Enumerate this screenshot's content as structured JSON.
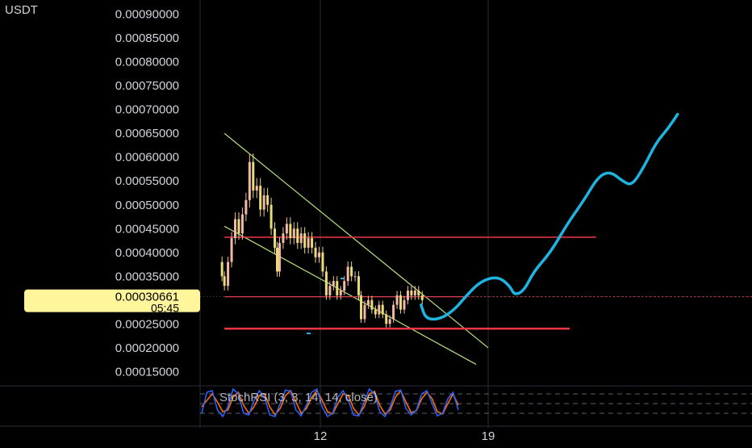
{
  "colors": {
    "background": "#000000",
    "axis_text": "#d1d4dc",
    "grid": "#2a2e39",
    "candle_up": "#f4b9a6",
    "candle_down": "#e8dc7a",
    "channel": "#b7e07a",
    "resistance": "#f23645",
    "projection": "#1fb3e0",
    "price_label_bg": "#fff59a",
    "price_label_text": "#000000",
    "stoch_k": "#2962ff",
    "stoch_d": "#ff6d00"
  },
  "chart_data": {
    "type": "candlestick",
    "currency_label": "USDT",
    "y_ticks": [
      "0.00090000",
      "0.00085000",
      "0.00080000",
      "0.00075000",
      "0.00070000",
      "0.00065000",
      "0.00060000",
      "0.00055000",
      "0.00050000",
      "0.00045000",
      "0.00040000",
      "0.00035000",
      "0.00025000",
      "0.00020000",
      "0.00015000"
    ],
    "ylim": [
      0.00012,
      0.00093
    ],
    "x_ticks": [
      {
        "label": "12",
        "day": 12
      },
      {
        "label": "19",
        "day": 19
      }
    ],
    "xlim_days": [
      7.8,
      26.6
    ],
    "current_price": "0.00030661",
    "countdown": "05:45",
    "price_path": [
      [
        7.8,
        0.00038
      ],
      [
        7.9,
        0.00035
      ],
      [
        8.0,
        0.00033
      ],
      [
        8.15,
        0.00038
      ],
      [
        8.3,
        0.00043
      ],
      [
        8.45,
        0.00047
      ],
      [
        8.6,
        0.00044
      ],
      [
        8.75,
        0.00048
      ],
      [
        8.9,
        0.00051
      ],
      [
        9.05,
        0.00059
      ],
      [
        9.2,
        0.00053
      ],
      [
        9.35,
        0.00054
      ],
      [
        9.5,
        0.00049
      ],
      [
        9.65,
        0.00052
      ],
      [
        9.8,
        0.0005
      ],
      [
        9.95,
        0.00045
      ],
      [
        10.1,
        0.00041
      ],
      [
        10.2,
        0.00036
      ],
      [
        10.3,
        0.00042
      ],
      [
        10.45,
        0.00044
      ],
      [
        10.6,
        0.00046
      ],
      [
        10.75,
        0.00043
      ],
      [
        10.9,
        0.00045
      ],
      [
        11.05,
        0.00042
      ],
      [
        11.2,
        0.00044
      ],
      [
        11.35,
        0.00041
      ],
      [
        11.5,
        0.00043
      ],
      [
        11.65,
        0.00041
      ],
      [
        11.8,
        0.00039
      ],
      [
        11.95,
        0.0004
      ],
      [
        12.1,
        0.00036
      ],
      [
        12.25,
        0.00031
      ],
      [
        12.4,
        0.00033
      ],
      [
        12.55,
        0.00034
      ],
      [
        12.7,
        0.00031
      ],
      [
        12.85,
        0.00032
      ],
      [
        13.0,
        0.00034
      ],
      [
        13.15,
        0.00037
      ],
      [
        13.3,
        0.00035
      ],
      [
        13.45,
        0.00035
      ],
      [
        13.6,
        0.00031
      ],
      [
        13.7,
        0.00026
      ],
      [
        13.85,
        0.00029
      ],
      [
        14.0,
        0.0003
      ],
      [
        14.15,
        0.00028
      ],
      [
        14.3,
        0.00027
      ],
      [
        14.45,
        0.00029
      ],
      [
        14.6,
        0.00027
      ],
      [
        14.75,
        0.00025
      ],
      [
        14.9,
        0.00026
      ],
      [
        15.05,
        0.00029
      ],
      [
        15.2,
        0.00031
      ],
      [
        15.35,
        0.00028
      ],
      [
        15.5,
        0.0003
      ],
      [
        15.65,
        0.00032
      ],
      [
        15.8,
        0.00031
      ],
      [
        15.95,
        0.00032
      ],
      [
        16.1,
        0.00031
      ],
      [
        16.25,
        0.0003
      ]
    ],
    "stoch_rsi_label": "StochRSI (3, 3, 14, 14, close)",
    "stoch_levels": [
      80,
      50,
      20
    ],
    "stoch_k": [
      20,
      85,
      90,
      30,
      10,
      40,
      95,
      80,
      20,
      15,
      60,
      90,
      70,
      15,
      10,
      50,
      92,
      88,
      30,
      12,
      45,
      85,
      95,
      40,
      10,
      20,
      70,
      90,
      60,
      15,
      12,
      55,
      95,
      80,
      25,
      10,
      40,
      88,
      92,
      35,
      15,
      30,
      80,
      90,
      50,
      12,
      20,
      65,
      85,
      30
    ],
    "stoch_d": [
      40,
      60,
      80,
      55,
      25,
      30,
      70,
      85,
      45,
      20,
      40,
      75,
      80,
      40,
      15,
      35,
      75,
      90,
      55,
      20,
      35,
      70,
      90,
      60,
      25,
      18,
      50,
      80,
      75,
      35,
      15,
      40,
      80,
      88,
      45,
      18,
      30,
      70,
      90,
      55,
      22,
      28,
      65,
      85,
      65,
      25,
      18,
      50,
      80,
      45
    ],
    "annotations": {
      "channel_upper": [
        [
          8.0,
          0.00065
        ],
        [
          19.0,
          0.0002
        ]
      ],
      "channel_lower": [
        [
          8.0,
          0.000455
        ],
        [
          18.5,
          0.000165
        ]
      ],
      "resistance": [
        [
          8.0,
          0.000432
        ],
        [
          23.5,
          0.000432
        ]
      ],
      "support": [
        [
          8.0,
          0.00024
        ],
        [
          22.4,
          0.00024
        ]
      ],
      "last_price_line": [
        [
          8.0,
          0.000307
        ],
        [
          18.0,
          0.000307
        ]
      ],
      "projection": [
        [
          16.2,
          0.00029
        ],
        [
          16.4,
          0.00026
        ],
        [
          17.0,
          0.00026
        ],
        [
          17.6,
          0.00028
        ],
        [
          18.1,
          0.00031
        ],
        [
          18.7,
          0.00034
        ],
        [
          19.4,
          0.00035
        ],
        [
          19.9,
          0.00033
        ],
        [
          20.1,
          0.00031
        ],
        [
          20.5,
          0.00032
        ],
        [
          20.9,
          0.00036
        ],
        [
          21.6,
          0.0004
        ],
        [
          22.3,
          0.00046
        ],
        [
          23.0,
          0.00051
        ],
        [
          23.6,
          0.00056
        ],
        [
          24.1,
          0.00057
        ],
        [
          24.6,
          0.00055
        ],
        [
          25.0,
          0.00054
        ],
        [
          25.5,
          0.00058
        ],
        [
          26.0,
          0.00063
        ],
        [
          26.5,
          0.00066
        ],
        [
          26.9,
          0.00069
        ]
      ]
    }
  }
}
